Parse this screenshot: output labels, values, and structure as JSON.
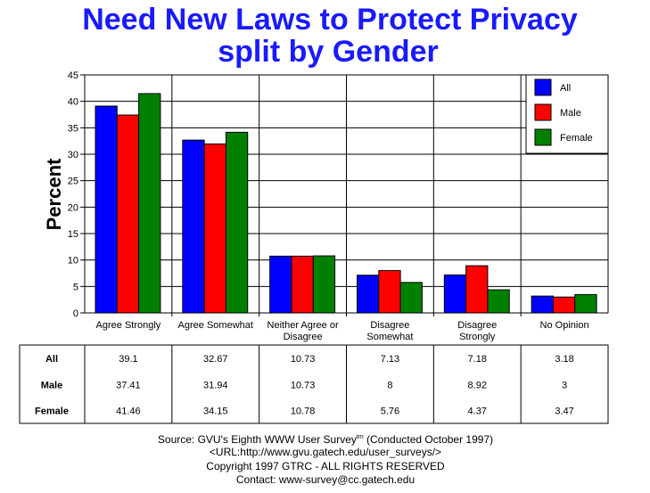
{
  "chart_data": {
    "type": "bar",
    "title": "Need New Laws to Protect Privacy",
    "subtitle": "split by Gender",
    "ylabel": "Percent",
    "xlabel": "",
    "ylim": [
      0,
      45
    ],
    "yticks": [
      0,
      5,
      10,
      15,
      20,
      25,
      30,
      35,
      40,
      45
    ],
    "grid": true,
    "legend_position": "top-right",
    "categories": [
      [
        "Agree Strongly"
      ],
      [
        "Agree Somewhat"
      ],
      [
        "Neither Agree or",
        "Disagree"
      ],
      [
        "Disagree",
        "Somewhat"
      ],
      [
        "Disagree",
        "Strongly"
      ],
      [
        "No Opinion"
      ]
    ],
    "series": [
      {
        "name": "All",
        "color": "#0000ff",
        "values": [
          39.1,
          32.67,
          10.73,
          7.13,
          7.18,
          3.18
        ]
      },
      {
        "name": "Male",
        "color": "#ff0000",
        "values": [
          37.41,
          31.94,
          10.73,
          8,
          8.92,
          3
        ]
      },
      {
        "name": "Female",
        "color": "#008000",
        "values": [
          41.46,
          34.15,
          10.78,
          5.76,
          4.37,
          3.47
        ]
      }
    ],
    "table": {
      "rows": [
        {
          "label": "All",
          "values": [
            "39.1",
            "32.67",
            "10.73",
            "7.13",
            "7.18",
            "3.18"
          ]
        },
        {
          "label": "Male",
          "values": [
            "37.41",
            "31.94",
            "10.73",
            "8",
            "8.92",
            "3"
          ]
        },
        {
          "label": "Female",
          "values": [
            "41.46",
            "34.15",
            "10.78",
            "5.76",
            "4.37",
            "3.47"
          ]
        }
      ]
    }
  },
  "footer": {
    "source": "Source: GVU's Eighth WWW User Survey",
    "tm": "tm",
    "conducted": " (Conducted October 1997)",
    "url": "<URL:http://www.gvu.gatech.edu/user_surveys/>",
    "copyright": "Copyright 1997 GTRC - ALL RIGHTS RESERVED",
    "contact": "Contact: www-survey@cc.gatech.edu"
  }
}
